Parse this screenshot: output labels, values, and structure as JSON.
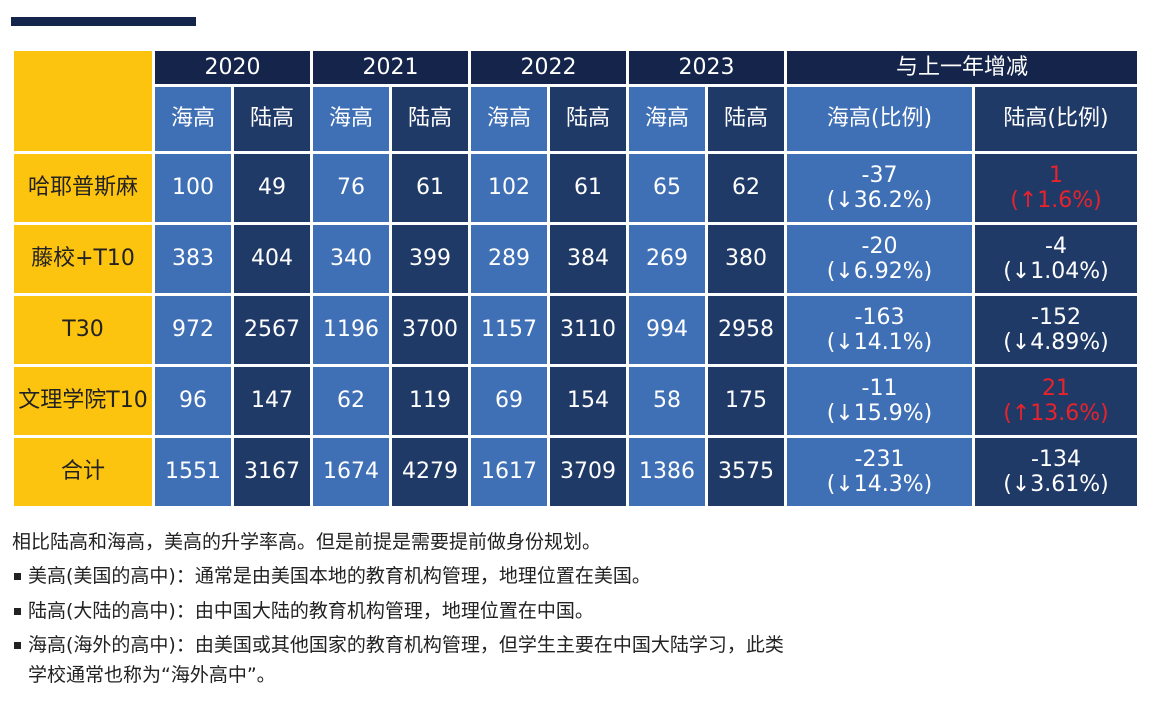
{
  "table": {
    "years": [
      "2020",
      "2021",
      "2022",
      "2023"
    ],
    "change_header": "与上一年增减",
    "sub_headers": [
      "海高",
      "陆高"
    ],
    "change_sub_headers": [
      "海高(比例)",
      "陆高(比例)"
    ],
    "rows": [
      {
        "label": "哈耶普斯麻",
        "values": [
          "100",
          "49",
          "76",
          "61",
          "102",
          "61",
          "65",
          "62"
        ],
        "hai_change": {
          "delta": "-37",
          "pct": "(↓36.2%)"
        },
        "lu_change": {
          "delta": "1",
          "pct": "(↑1.6%)"
        }
      },
      {
        "label": "藤校+T10",
        "values": [
          "383",
          "404",
          "340",
          "399",
          "289",
          "384",
          "269",
          "380"
        ],
        "hai_change": {
          "delta": "-20",
          "pct": "(↓6.92%)"
        },
        "lu_change": {
          "delta": "-4",
          "pct": "(↓1.04%)"
        }
      },
      {
        "label": "T30",
        "values": [
          "972",
          "2567",
          "1196",
          "3700",
          "1157",
          "3110",
          "994",
          "2958"
        ],
        "hai_change": {
          "delta": "-163",
          "pct": "(↓14.1%)"
        },
        "lu_change": {
          "delta": "-152",
          "pct": "(↓4.89%)"
        }
      },
      {
        "label": "文理学院T10",
        "values": [
          "96",
          "147",
          "62",
          "119",
          "69",
          "154",
          "58",
          "175"
        ],
        "hai_change": {
          "delta": "-11",
          "pct": "(↓15.9%)"
        },
        "lu_change": {
          "delta": "21",
          "pct": "(↑13.6%)"
        }
      },
      {
        "label": "合计",
        "values": [
          "1551",
          "3167",
          "1674",
          "4279",
          "1617",
          "3709",
          "1386",
          "3575"
        ],
        "hai_change": {
          "delta": "-231",
          "pct": "(↓14.3%)"
        },
        "lu_change": {
          "delta": "-134",
          "pct": "(↓3.61%)"
        }
      }
    ]
  },
  "notes": {
    "intro": "相比陆高和海高，美高的升学率高。但是前提是需要提前做身份规划。",
    "bullets": [
      "美高(美国的高中)：通常是由美国本地的教育机构管理，地理位置在美国。",
      "陆高(大陆的高中)：由中国大陆的教育机构管理，地理位置在中国。",
      "海高(海外的高中)：由美国或其他国家的教育机构管理，但学生主要在中国大陆学习，此类"
    ],
    "continuation": "学校通常也称为“海外高中”。"
  },
  "colors": {
    "navy": "#14244a",
    "light_blue": "#3f6fb5",
    "dark_blue": "#203a68",
    "gold": "#fcc30f",
    "increase_red": "#e8232b"
  }
}
